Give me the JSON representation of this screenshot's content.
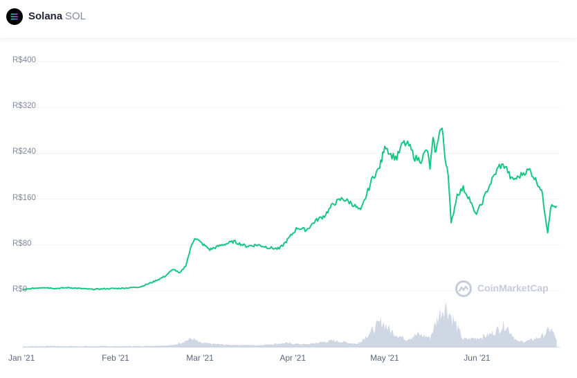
{
  "header": {
    "coin_name": "Solana",
    "coin_symbol": "SOL",
    "logo_icon": "solana-logo-icon"
  },
  "watermark": {
    "text": "CoinMarketCap",
    "icon": "coinmarketcap-logo-icon"
  },
  "colors": {
    "price_line": "#16c784",
    "volume": "#cfd6e4",
    "grid": "#eff2f5",
    "axis_text": "#808a9d"
  },
  "chart_data": {
    "type": "line",
    "y_tick_labels": [
      "R$400",
      "R$320",
      "R$240",
      "R$160",
      "R$80",
      "R$0"
    ],
    "y_ticks": [
      400,
      320,
      240,
      160,
      80,
      0
    ],
    "ylim": [
      0,
      400
    ],
    "x_tick_labels": [
      "Jan '21",
      "Feb '21",
      "Mar '21",
      "Apr '21",
      "May '21",
      "Jun '21"
    ],
    "x_tick_dates": [
      "2021-01-01",
      "2021-02-01",
      "2021-03-01",
      "2021-04-01",
      "2021-05-01",
      "2021-06-01"
    ],
    "xlim": [
      "2021-01-01",
      "2021-06-28"
    ],
    "grid": "horizontal",
    "series": [
      {
        "kind": "price",
        "points": [
          [
            "2021-01-01",
            1.5
          ],
          [
            "2021-01-04",
            4
          ],
          [
            "2021-01-08",
            6
          ],
          [
            "2021-01-12",
            4
          ],
          [
            "2021-01-16",
            5.5
          ],
          [
            "2021-01-20",
            4
          ],
          [
            "2021-01-24",
            2.5
          ],
          [
            "2021-01-28",
            3.5
          ],
          [
            "2021-02-01",
            4
          ],
          [
            "2021-02-05",
            5
          ],
          [
            "2021-02-09",
            7
          ],
          [
            "2021-02-13",
            15
          ],
          [
            "2021-02-17",
            25
          ],
          [
            "2021-02-20",
            38
          ],
          [
            "2021-02-22",
            30
          ],
          [
            "2021-02-24",
            44
          ],
          [
            "2021-02-26",
            80
          ],
          [
            "2021-02-27",
            93
          ],
          [
            "2021-03-01",
            84
          ],
          [
            "2021-03-04",
            72
          ],
          [
            "2021-03-08",
            80
          ],
          [
            "2021-03-12",
            86
          ],
          [
            "2021-03-16",
            78
          ],
          [
            "2021-03-20",
            80
          ],
          [
            "2021-03-24",
            75
          ],
          [
            "2021-03-27",
            73
          ],
          [
            "2021-03-29",
            84
          ],
          [
            "2021-04-02",
            110
          ],
          [
            "2021-04-05",
            106
          ],
          [
            "2021-04-08",
            122
          ],
          [
            "2021-04-11",
            131
          ],
          [
            "2021-04-14",
            152
          ],
          [
            "2021-04-17",
            161
          ],
          [
            "2021-04-20",
            153
          ],
          [
            "2021-04-23",
            139
          ],
          [
            "2021-04-25",
            168
          ],
          [
            "2021-04-27",
            198
          ],
          [
            "2021-04-29",
            212
          ],
          [
            "2021-04-30",
            228
          ],
          [
            "2021-05-01",
            256
          ],
          [
            "2021-05-03",
            237
          ],
          [
            "2021-05-05",
            232
          ],
          [
            "2021-05-07",
            258
          ],
          [
            "2021-05-09",
            254
          ],
          [
            "2021-05-11",
            232
          ],
          [
            "2021-05-13",
            228
          ],
          [
            "2021-05-15",
            247
          ],
          [
            "2021-05-16",
            215
          ],
          [
            "2021-05-17",
            262
          ],
          [
            "2021-05-18",
            240
          ],
          [
            "2021-05-19",
            278
          ],
          [
            "2021-05-20",
            283
          ],
          [
            "2021-05-21",
            232
          ],
          [
            "2021-05-22",
            208
          ],
          [
            "2021-05-23",
            116
          ],
          [
            "2021-05-25",
            168
          ],
          [
            "2021-05-27",
            179
          ],
          [
            "2021-05-29",
            162
          ],
          [
            "2021-05-31",
            133
          ],
          [
            "2021-06-02",
            150
          ],
          [
            "2021-06-04",
            176
          ],
          [
            "2021-06-06",
            198
          ],
          [
            "2021-06-08",
            218
          ],
          [
            "2021-06-10",
            218
          ],
          [
            "2021-06-12",
            194
          ],
          [
            "2021-06-14",
            197
          ],
          [
            "2021-06-16",
            206
          ],
          [
            "2021-06-18",
            211
          ],
          [
            "2021-06-20",
            194
          ],
          [
            "2021-06-22",
            176
          ],
          [
            "2021-06-23",
            140
          ],
          [
            "2021-06-24",
            103
          ],
          [
            "2021-06-25",
            147
          ],
          [
            "2021-06-27",
            148
          ]
        ]
      },
      {
        "kind": "volume",
        "points": [
          [
            "2021-01-01",
            1
          ],
          [
            "2021-01-10",
            2
          ],
          [
            "2021-01-20",
            1.5
          ],
          [
            "2021-02-01",
            1.5
          ],
          [
            "2021-02-10",
            2
          ],
          [
            "2021-02-20",
            4
          ],
          [
            "2021-02-26",
            20
          ],
          [
            "2021-03-01",
            9
          ],
          [
            "2021-03-10",
            5
          ],
          [
            "2021-03-20",
            4
          ],
          [
            "2021-03-29",
            9
          ],
          [
            "2021-04-05",
            6
          ],
          [
            "2021-04-14",
            15
          ],
          [
            "2021-04-22",
            7
          ],
          [
            "2021-04-27",
            40
          ],
          [
            "2021-04-30",
            62
          ],
          [
            "2021-05-03",
            38
          ],
          [
            "2021-05-08",
            18
          ],
          [
            "2021-05-12",
            30
          ],
          [
            "2021-05-16",
            22
          ],
          [
            "2021-05-19",
            78
          ],
          [
            "2021-05-21",
            100
          ],
          [
            "2021-05-24",
            62
          ],
          [
            "2021-05-27",
            18
          ],
          [
            "2021-06-01",
            22
          ],
          [
            "2021-06-05",
            30
          ],
          [
            "2021-06-10",
            54
          ],
          [
            "2021-06-14",
            12
          ],
          [
            "2021-06-18",
            15
          ],
          [
            "2021-06-22",
            25
          ],
          [
            "2021-06-25",
            44
          ],
          [
            "2021-06-27",
            18
          ]
        ]
      }
    ]
  }
}
